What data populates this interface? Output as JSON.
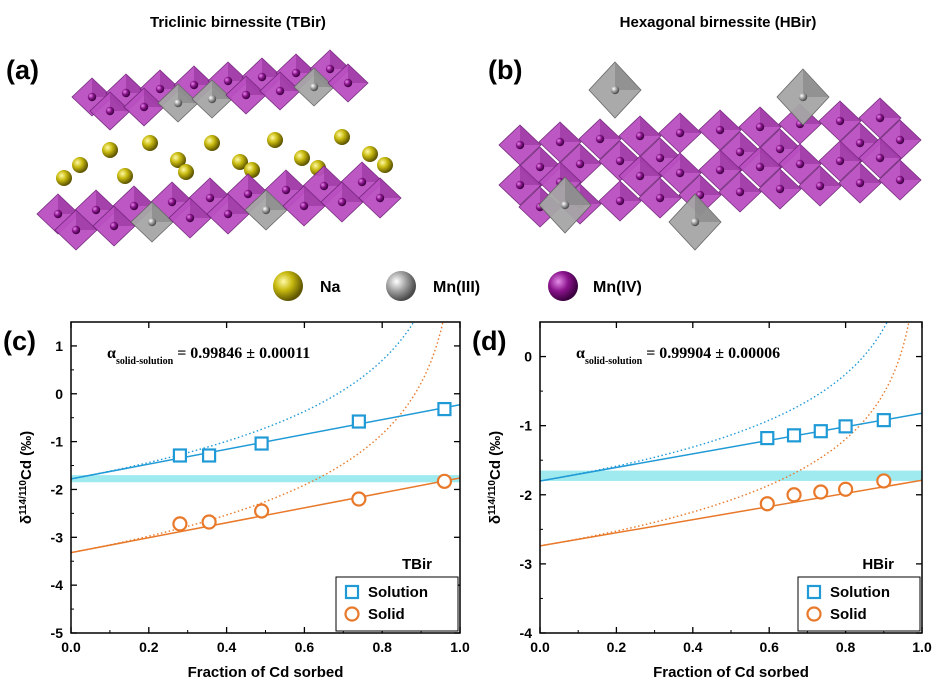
{
  "structures": {
    "left_title": "Triclinic birnessite (TBir)",
    "right_title": "Hexagonal birnessite (HBir)",
    "label_a": "(a)",
    "label_b": "(b)",
    "legend": [
      {
        "label": "Na",
        "color": "#b5a800"
      },
      {
        "label": "Mn(III)",
        "color": "#9a9a9a"
      },
      {
        "label": "Mn(IV)",
        "color": "#7a0f7a"
      }
    ],
    "colors": {
      "octahedron": "#b94fc0",
      "octahedron_dark": "#8f2f98",
      "octahedron_gray": "#a6a6a6",
      "na": "#b8ab00"
    }
  },
  "chart_data": [
    {
      "type": "scatter",
      "panel_label": "(c)",
      "annotation_prefix": "α",
      "annotation_sub": "solid-solution",
      "annotation_value": " = 0.99846 ± 0.00011",
      "xlabel": "Fraction of Cd sorbed",
      "ylabel_prefix": "δ",
      "ylabel_sup": "114/110",
      "ylabel_suffix": "Cd (‰)",
      "xlim": [
        0.0,
        1.0
      ],
      "ylim": [
        -5,
        1.5
      ],
      "xticks": [
        0.0,
        0.2,
        0.4,
        0.6,
        0.8,
        1.0
      ],
      "xtick_labels": [
        "0.0",
        "0.2",
        "0.4",
        "0.6",
        "0.8",
        "1.0"
      ],
      "yticks": [
        -5,
        -4,
        -3,
        -2,
        -1,
        0,
        1
      ],
      "ytick_labels": [
        "-5",
        "-4",
        "-3",
        "-2",
        "-1",
        "0",
        "1"
      ],
      "grid": false,
      "legend_title": "TBir",
      "legend_position": "bottom-right",
      "band": [
        -1.85,
        -1.7
      ],
      "band_color": "#7fe3ea",
      "series": [
        {
          "name": "Solution",
          "marker": "square",
          "color": "#1f9ad6",
          "x": [
            0.28,
            0.355,
            0.49,
            0.74,
            0.96
          ],
          "y": [
            -1.29,
            -1.29,
            -1.04,
            -0.58,
            -0.32
          ]
        },
        {
          "name": "Solid",
          "marker": "circle",
          "color": "#e8792a",
          "x": [
            0.28,
            0.355,
            0.49,
            0.74,
            0.96
          ],
          "y": [
            -2.72,
            -2.68,
            -2.45,
            -2.2,
            -1.83
          ]
        }
      ],
      "fits": [
        {
          "color": "#1f9ad6",
          "x": [
            0.0,
            1.0
          ],
          "y": [
            -1.78,
            -0.23
          ]
        },
        {
          "color": "#e8792a",
          "x": [
            0.0,
            1.0
          ],
          "y": [
            -3.32,
            -1.76
          ]
        }
      ],
      "rayleigh": [
        {
          "color": "#1f9ad6",
          "x0": 0.0,
          "y0": -1.78,
          "scale": 1.54
        },
        {
          "color": "#e8792a",
          "x0": 0.0,
          "y0": -3.32,
          "scale": 1.54
        }
      ]
    },
    {
      "type": "scatter",
      "panel_label": "(d)",
      "annotation_prefix": "α",
      "annotation_sub": "solid-solution",
      "annotation_value": " = 0.99904 ± 0.00006",
      "xlabel": "Fraction of Cd sorbed",
      "ylabel_prefix": "δ",
      "ylabel_sup": "114/110",
      "ylabel_suffix": "Cd (‰)",
      "xlim": [
        0.0,
        1.0
      ],
      "ylim": [
        -4,
        0.5
      ],
      "xticks": [
        0.0,
        0.2,
        0.4,
        0.6,
        0.8,
        1.0
      ],
      "xtick_labels": [
        "0.0",
        "0.2",
        "0.4",
        "0.6",
        "0.8",
        "1.0"
      ],
      "yticks": [
        -4,
        -3,
        -2,
        -1,
        0
      ],
      "ytick_labels": [
        "-4",
        "-3",
        "-2",
        "-1",
        "0"
      ],
      "grid": false,
      "legend_title": "HBir",
      "legend_position": "bottom-right",
      "band": [
        -1.8,
        -1.65
      ],
      "band_color": "#7fe3ea",
      "series": [
        {
          "name": "Solution",
          "marker": "square",
          "color": "#1f9ad6",
          "x": [
            0.595,
            0.665,
            0.735,
            0.8,
            0.9
          ],
          "y": [
            -1.18,
            -1.14,
            -1.08,
            -1.01,
            -0.92
          ]
        },
        {
          "name": "Solid",
          "marker": "circle",
          "color": "#e8792a",
          "x": [
            0.595,
            0.665,
            0.735,
            0.8,
            0.9
          ],
          "y": [
            -2.13,
            -2.0,
            -1.96,
            -1.92,
            -1.8
          ]
        }
      ],
      "fits": [
        {
          "color": "#1f9ad6",
          "x": [
            0.0,
            1.0
          ],
          "y": [
            -1.8,
            -0.82
          ]
        },
        {
          "color": "#e8792a",
          "x": [
            0.0,
            1.0
          ],
          "y": [
            -2.74,
            -1.79
          ]
        }
      ],
      "rayleigh": [
        {
          "color": "#1f9ad6",
          "x0": 0.0,
          "y0": -1.8,
          "scale": 0.96
        },
        {
          "color": "#e8792a",
          "x0": 0.0,
          "y0": -2.74,
          "scale": 0.96
        }
      ]
    }
  ]
}
